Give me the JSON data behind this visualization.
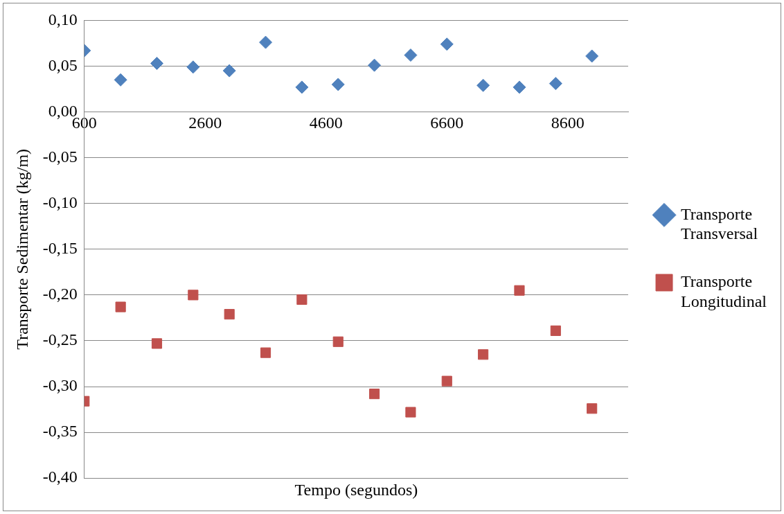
{
  "chart_data": {
    "type": "scatter",
    "xlabel": "Tempo (segundos)",
    "ylabel": "Transporte Sedimentar (kg/m)",
    "x": [
      600,
      1200,
      1800,
      2400,
      3000,
      3600,
      4200,
      4800,
      5400,
      6000,
      6600,
      7200,
      7800,
      8400,
      9000
    ],
    "series": [
      {
        "name": "Transporte Transversal",
        "color": "#4f81bd",
        "marker": "diamond",
        "values": [
          0.067,
          0.035,
          0.053,
          0.049,
          0.045,
          0.076,
          0.027,
          0.03,
          0.051,
          0.062,
          0.074,
          0.029,
          0.027,
          0.031,
          0.061
        ]
      },
      {
        "name": "Transporte Longitudinal",
        "color": "#c0504d",
        "marker": "square",
        "values": [
          -0.316,
          -0.213,
          -0.253,
          -0.2,
          -0.221,
          -0.263,
          -0.205,
          -0.251,
          -0.308,
          -0.328,
          -0.294,
          -0.265,
          -0.195,
          -0.239,
          -0.324
        ]
      }
    ],
    "xlim": [
      600,
      9600
    ],
    "xticks": [
      600,
      2600,
      4600,
      6600,
      8600
    ],
    "ylim": [
      -0.4,
      0.1
    ],
    "yticks": [
      {
        "value": -0.4,
        "label": "-0,40"
      },
      {
        "value": -0.35,
        "label": "-0,35"
      },
      {
        "value": -0.3,
        "label": "-0,30"
      },
      {
        "value": -0.25,
        "label": "-0,25"
      },
      {
        "value": -0.2,
        "label": "-0,20"
      },
      {
        "value": -0.15,
        "label": "-0,15"
      },
      {
        "value": -0.1,
        "label": "-0,10"
      },
      {
        "value": -0.05,
        "label": "-0,05"
      },
      {
        "value": 0,
        "label": "0,00"
      },
      {
        "value": 0.05,
        "label": "0,05"
      },
      {
        "value": 0.1,
        "label": "0,10"
      }
    ],
    "grid": "y",
    "legend": "right"
  }
}
